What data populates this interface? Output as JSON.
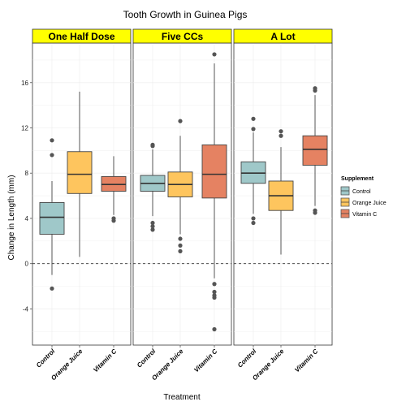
{
  "chart_data": {
    "type": "boxplot",
    "title": "Tooth Growth in Guinea Pigs",
    "xlabel": "Treatment",
    "ylabel": "Change in Length (mm)",
    "ylim": [
      -7.2,
      19.5
    ],
    "yticks": [
      -4,
      0,
      4,
      8,
      12,
      16
    ],
    "reference_line": {
      "y": 0,
      "style": "dashed"
    },
    "grid": true,
    "legend": {
      "title": "Supplement",
      "position": "right",
      "entries": [
        {
          "name": "Control",
          "color": "#9fc8c9"
        },
        {
          "name": "Orange Juice",
          "color": "#fec55e"
        },
        {
          "name": "Vitamin C",
          "color": "#e58262"
        }
      ]
    },
    "categories": [
      "Control",
      "Orange Juice",
      "Vitamin C"
    ],
    "panels": [
      {
        "name": "One Half Dose",
        "boxes": [
          {
            "category": "Control",
            "whisker_low": -1.0,
            "q1": 2.6,
            "median": 4.1,
            "q3": 5.4,
            "whisker_high": 7.3,
            "outliers": [
              -2.2,
              9.6,
              10.9
            ]
          },
          {
            "category": "Orange Juice",
            "whisker_low": 0.6,
            "q1": 6.2,
            "median": 7.9,
            "q3": 9.9,
            "whisker_high": 15.2,
            "outliers": []
          },
          {
            "category": "Vitamin C",
            "whisker_low": 4.3,
            "q1": 6.4,
            "median": 7.0,
            "q3": 7.7,
            "whisker_high": 9.5,
            "outliers": [
              3.8,
              4.0
            ]
          }
        ]
      },
      {
        "name": "Five CCs",
        "boxes": [
          {
            "category": "Control",
            "whisker_low": 4.2,
            "q1": 6.4,
            "median": 7.1,
            "q3": 7.8,
            "whisker_high": 10.1,
            "outliers": [
              3.0,
              3.3,
              3.6,
              10.4,
              10.5
            ]
          },
          {
            "category": "Orange Juice",
            "whisker_low": 2.6,
            "q1": 5.9,
            "median": 7.0,
            "q3": 8.1,
            "whisker_high": 11.3,
            "outliers": [
              1.1,
              1.6,
              2.2,
              12.6
            ]
          },
          {
            "category": "Vitamin C",
            "whisker_low": -1.3,
            "q1": 5.8,
            "median": 7.9,
            "q3": 10.5,
            "whisker_high": 17.7,
            "outliers": [
              -1.8,
              -2.5,
              -2.8,
              -3.0,
              -5.8,
              18.5
            ]
          }
        ]
      },
      {
        "name": "A Lot",
        "boxes": [
          {
            "category": "Control",
            "whisker_low": 4.4,
            "q1": 7.1,
            "median": 8.0,
            "q3": 9.0,
            "whisker_high": 11.6,
            "outliers": [
              3.6,
              4.0,
              11.9,
              12.8
            ]
          },
          {
            "category": "Orange Juice",
            "whisker_low": 0.8,
            "q1": 4.7,
            "median": 6.0,
            "q3": 7.3,
            "whisker_high": 10.3,
            "outliers": [
              11.3,
              11.7
            ]
          },
          {
            "category": "Vitamin C",
            "whisker_low": 5.1,
            "q1": 8.7,
            "median": 10.1,
            "q3": 11.3,
            "whisker_high": 14.9,
            "outliers": [
              4.5,
              4.7,
              15.3,
              15.5
            ]
          }
        ]
      }
    ]
  }
}
